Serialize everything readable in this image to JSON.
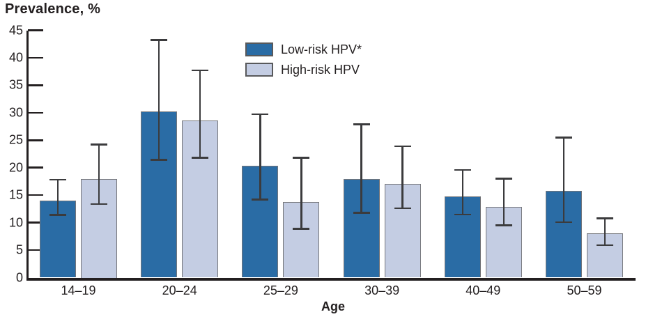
{
  "chart_data": {
    "type": "bar",
    "title": "Prevalence, %",
    "xlabel": "Age",
    "ylabel": "Prevalence, %",
    "ylim": [
      0,
      45
    ],
    "ytick_step": 5,
    "grid": false,
    "error_bars": true,
    "legend_position": "top-center",
    "categories": [
      "14–19",
      "20–24",
      "25–29",
      "30–39",
      "40–49",
      "50–59"
    ],
    "series": [
      {
        "name": "Low-risk HPV*",
        "color": "#2A6CA5",
        "values": [
          14.0,
          30.2,
          20.3,
          17.9,
          14.8,
          15.8
        ],
        "ci_low": [
          11.4,
          21.4,
          14.2,
          11.8,
          11.5,
          10.1
        ],
        "ci_high": [
          17.8,
          43.2,
          29.7,
          27.9,
          19.6,
          25.5
        ]
      },
      {
        "name": "High-risk HPV",
        "color": "#C4CDE3",
        "values": [
          18.0,
          28.6,
          13.8,
          17.1,
          12.9,
          8.0
        ],
        "ci_low": [
          13.4,
          21.8,
          8.9,
          12.6,
          9.5,
          5.9
        ],
        "ci_high": [
          24.2,
          37.7,
          21.8,
          23.9,
          18.0,
          10.8
        ]
      }
    ]
  },
  "colors": {
    "low_risk_bar": "#2A6CA5",
    "high_risk_bar": "#C4CDE3",
    "bar_border": "#75767A",
    "error_bar": "#3B3B3D",
    "axis": "#231F20",
    "text": "#231F20"
  }
}
